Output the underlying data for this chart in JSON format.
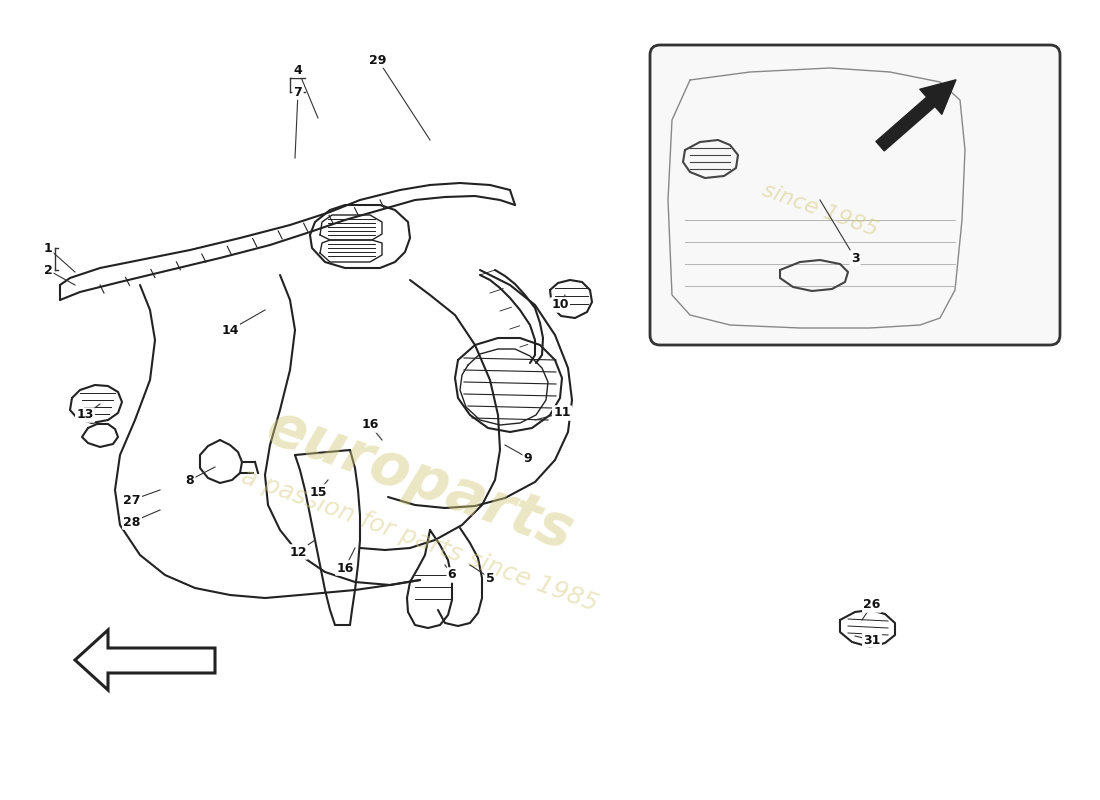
{
  "bg_color": "#ffffff",
  "line_color": "#222222",
  "watermark_color": "#d4c97a",
  "label_color": "#111111",
  "part_labels": [
    [
      "1",
      48,
      248,
      75,
      272
    ],
    [
      "2",
      48,
      270,
      75,
      285
    ],
    [
      "4",
      298,
      70,
      318,
      118
    ],
    [
      "7",
      298,
      92,
      295,
      158
    ],
    [
      "29",
      378,
      60,
      430,
      140
    ],
    [
      "14",
      230,
      330,
      265,
      310
    ],
    [
      "13",
      85,
      415,
      100,
      404
    ],
    [
      "8",
      190,
      480,
      215,
      467
    ],
    [
      "27",
      132,
      500,
      160,
      490
    ],
    [
      "28",
      132,
      522,
      160,
      510
    ],
    [
      "15",
      318,
      492,
      328,
      480
    ],
    [
      "12",
      298,
      552,
      315,
      540
    ],
    [
      "16",
      345,
      568,
      355,
      548
    ],
    [
      "16",
      370,
      425,
      382,
      440
    ],
    [
      "10",
      560,
      305,
      565,
      295
    ],
    [
      "11",
      562,
      413,
      535,
      420
    ],
    [
      "9",
      528,
      458,
      505,
      445
    ],
    [
      "6",
      452,
      575,
      445,
      565
    ],
    [
      "5",
      490,
      578,
      470,
      565
    ],
    [
      "3",
      855,
      258,
      820,
      200
    ],
    [
      "26",
      872,
      605,
      862,
      620
    ],
    [
      "31",
      872,
      640,
      855,
      636
    ]
  ]
}
